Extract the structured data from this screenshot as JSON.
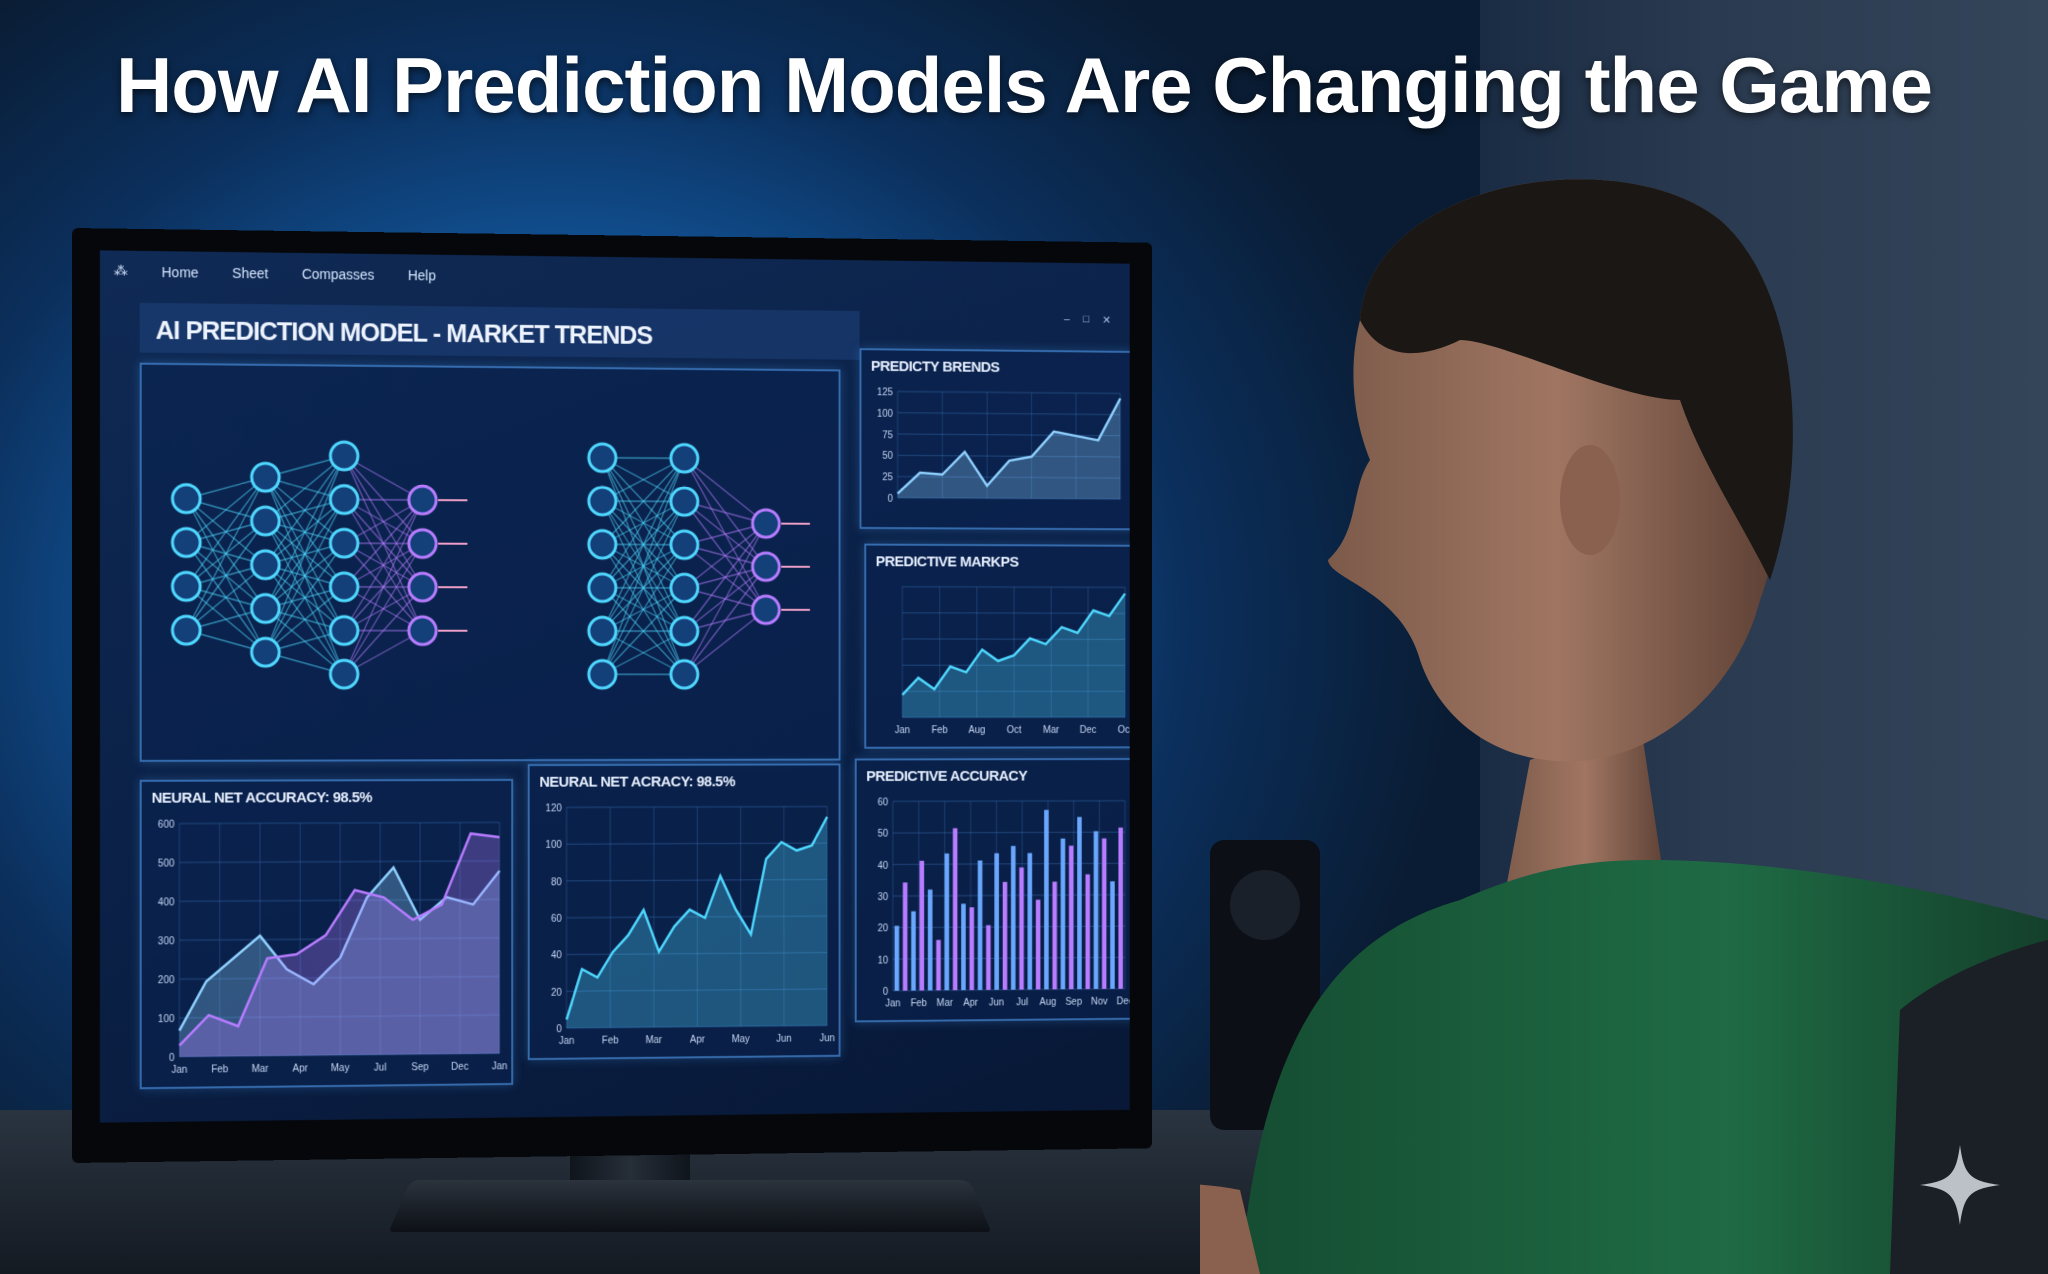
{
  "title": "How AI Prediction Models Are Changing the Game",
  "screen": {
    "menu": [
      "Home",
      "Sheet",
      "Compasses",
      "Help"
    ],
    "header": "AI PREDICTION MODEL - MARKET TRENDS",
    "neural_net": {
      "layers_left": [
        4,
        5,
        6,
        4
      ],
      "layers_right": [
        6,
        6,
        3
      ]
    },
    "panels": [
      {
        "title": "PREDICTY BRENDS",
        "yticks": [
          "0",
          "25",
          "50",
          "75",
          "100",
          "125"
        ],
        "xticks": [
          "",
          "",
          "",
          "",
          "",
          ""
        ],
        "type": "area",
        "values": [
          5,
          30,
          28,
          55,
          15,
          45,
          50,
          80,
          75,
          70,
          120
        ]
      },
      {
        "title": "PREDICTIVE MARKPS",
        "yticks": [
          "",
          "",
          "",
          "",
          "",
          ""
        ],
        "xticks": [
          "Jan",
          "Feb",
          "Aug",
          "Oct",
          "Mar",
          "Dec",
          "Oct"
        ],
        "type": "area",
        "values": [
          20,
          35,
          25,
          45,
          40,
          60,
          50,
          55,
          70,
          65,
          80,
          75,
          95,
          90,
          110
        ]
      },
      {
        "title": "NEURAL NET ACCURACY: 98.5%",
        "yticks": [
          "0",
          "100",
          "200",
          "300",
          "400",
          "500",
          "600"
        ],
        "xticks": [
          "Jan",
          "Feb",
          "Mar",
          "Apr",
          "May",
          "Jul",
          "Sep",
          "Dec",
          "Jan"
        ],
        "type": "dual",
        "values": [
          70,
          200,
          260,
          320,
          230,
          190,
          260,
          420,
          500,
          360,
          420,
          400,
          490
        ],
        "values2": [
          30,
          110,
          80,
          260,
          270,
          320,
          440,
          420,
          360,
          400,
          590,
          580
        ]
      },
      {
        "title": "NEURAL NET ACRACY: 98.5%",
        "yticks": [
          "0",
          "20",
          "40",
          "60",
          "80",
          "100",
          "120"
        ],
        "xticks": [
          "Jan",
          "Feb",
          "Mar",
          "Apr",
          "May",
          "Jun",
          "Jun"
        ],
        "type": "area",
        "values": [
          5,
          35,
          30,
          45,
          55,
          70,
          45,
          60,
          70,
          65,
          90,
          70,
          55,
          100,
          110,
          105,
          108,
          125
        ]
      },
      {
        "title": "PREDICTIVE ACCURACY",
        "yticks": [
          "0",
          "10",
          "20",
          "30",
          "40",
          "50",
          "60"
        ],
        "xticks": [
          "Jan",
          "Feb",
          "Mar",
          "Apr",
          "Jun",
          "Jul",
          "Aug",
          "Sep",
          "Nov",
          "Dec"
        ],
        "type": "bar",
        "values": [
          18,
          30,
          22,
          36,
          28,
          14,
          38,
          45,
          24,
          23,
          36,
          18,
          38,
          30,
          40,
          34,
          38,
          25,
          50,
          30,
          42,
          40,
          48,
          32,
          44,
          42,
          30,
          45
        ]
      }
    ]
  },
  "colors": {
    "cyan": "#4fd8ff",
    "violet": "#b77cff",
    "shirt": "#1f6b45"
  }
}
